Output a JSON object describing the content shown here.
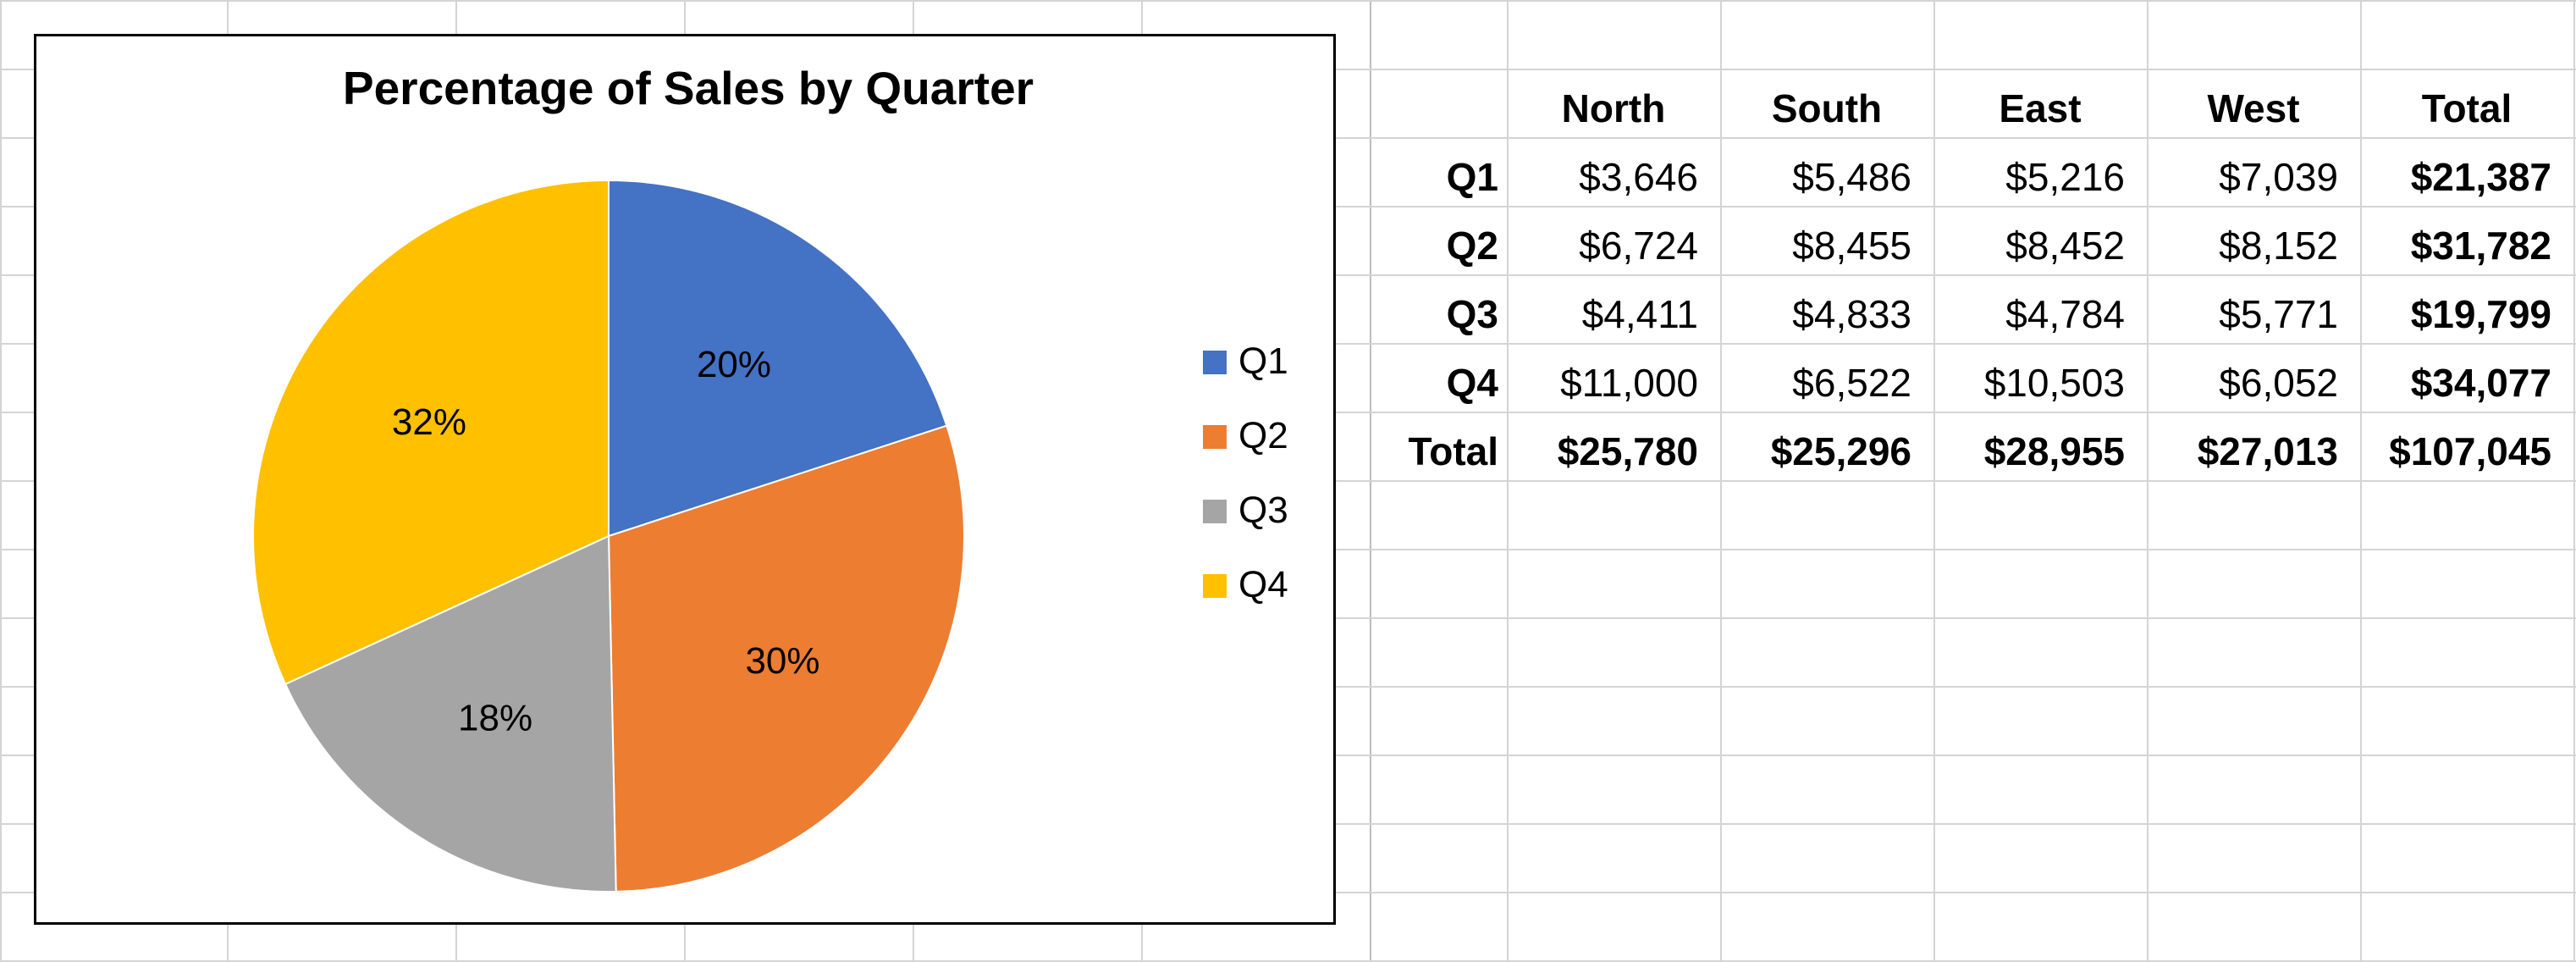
{
  "chart_data": {
    "type": "pie",
    "title": "Percentage of Sales by Quarter",
    "categories": [
      "Q1",
      "Q2",
      "Q3",
      "Q4"
    ],
    "values": [
      21387,
      31782,
      19799,
      34077
    ],
    "labels": [
      "20%",
      "30%",
      "18%",
      "32%"
    ],
    "colors": [
      "#4472C4",
      "#ED7D31",
      "#A5A5A5",
      "#FFC000"
    ],
    "legend": "right"
  },
  "table": {
    "columns": [
      "North",
      "South",
      "East",
      "West",
      "Total"
    ],
    "rows": [
      {
        "label": "Q1",
        "cells": [
          "$3,646",
          "$5,486",
          "$5,216",
          "$7,039",
          "$21,387"
        ]
      },
      {
        "label": "Q2",
        "cells": [
          "$6,724",
          "$8,455",
          "$8,452",
          "$8,152",
          "$31,782"
        ]
      },
      {
        "label": "Q3",
        "cells": [
          "$4,411",
          "$4,833",
          "$4,784",
          "$5,771",
          "$19,799"
        ]
      },
      {
        "label": "Q4",
        "cells": [
          "$11,000",
          "$6,522",
          "$10,503",
          "$6,052",
          "$34,077"
        ]
      },
      {
        "label": "Total",
        "cells": [
          "$25,780",
          "$25,296",
          "$28,955",
          "$27,013",
          "$107,045"
        ]
      }
    ]
  }
}
